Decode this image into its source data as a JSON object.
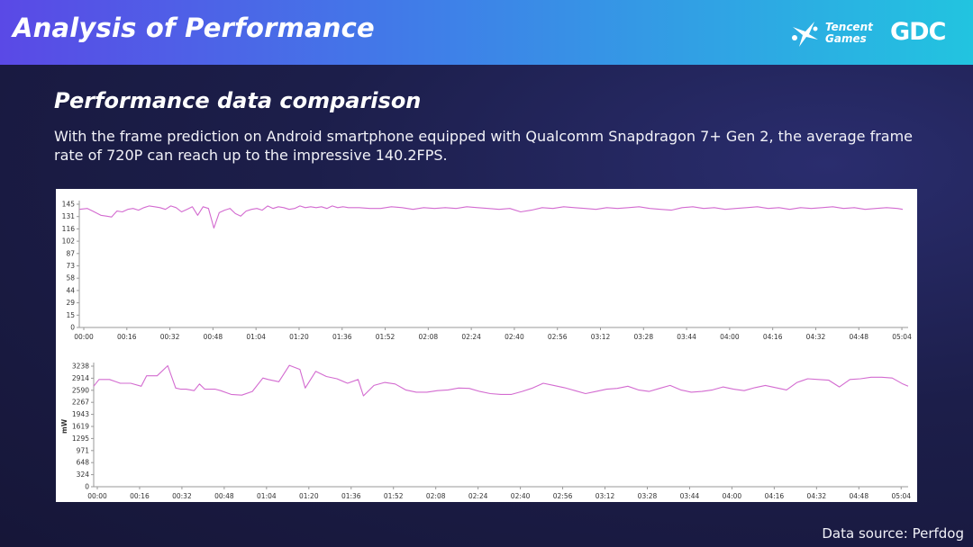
{
  "header": {
    "title": "Analysis of Performance",
    "logo_tencent_line1": "Tencent",
    "logo_tencent_line2": "Games",
    "logo_gdc": "GDC"
  },
  "slide": {
    "subtitle": "Performance data comparison",
    "description": "With the frame prediction on Android smartphone equipped with Qualcomm Snapdragon 7+ Gen 2, the average frame rate of 720P can reach up to the impressive 140.2FPS.",
    "source": "Data source: Perfdog"
  },
  "colors": {
    "header_start": "#5a49e6",
    "header_end": "#22c4e0",
    "background": "#1c1e4a",
    "series_line": "#d36bd0"
  },
  "chart_data": [
    {
      "type": "line",
      "ylabel": "",
      "yticks": [
        "0",
        "15",
        "29",
        "44",
        "58",
        "73",
        "87",
        "102",
        "116",
        "131",
        "145"
      ],
      "xticks": [
        "00:00",
        "00:16",
        "00:32",
        "00:48",
        "01:04",
        "01:20",
        "01:36",
        "01:52",
        "02:08",
        "02:24",
        "02:40",
        "02:56",
        "03:12",
        "03:28",
        "03:44",
        "04:00",
        "04:16",
        "04:32",
        "04:48",
        "05:04"
      ],
      "ylim": [
        0,
        145
      ],
      "xlim": [
        0,
        308
      ],
      "grid": false,
      "series": [
        {
          "x": [
            0,
            3,
            5,
            8,
            10,
            12,
            14,
            16,
            18,
            20,
            22,
            24,
            26,
            28,
            30,
            32,
            34,
            36,
            38,
            40,
            42,
            44,
            46,
            48,
            50,
            52,
            54,
            56,
            58,
            60,
            62,
            64,
            66,
            68,
            70,
            72,
            74,
            76,
            78,
            80,
            82,
            84,
            86,
            88,
            90,
            92,
            94,
            96,
            98,
            100,
            104,
            108,
            112,
            116,
            120,
            124,
            128,
            132,
            136,
            140,
            144,
            148,
            152,
            156,
            160,
            164,
            168,
            172,
            176,
            180,
            184,
            188,
            192,
            196,
            200,
            204,
            208,
            212,
            216,
            220,
            224,
            228,
            232,
            236,
            240,
            244,
            248,
            252,
            256,
            260,
            264,
            268,
            272,
            276,
            280,
            284,
            288,
            292,
            296,
            300,
            304,
            306
          ],
          "y": [
            139,
            140,
            137,
            132,
            131,
            130,
            137,
            136,
            139,
            140,
            138,
            141,
            143,
            142,
            141,
            139,
            143,
            141,
            136,
            139,
            142,
            132,
            142,
            140,
            117,
            135,
            138,
            140,
            134,
            131,
            137,
            139,
            140,
            138,
            143,
            140,
            142,
            141,
            139,
            140,
            143,
            141,
            142,
            141,
            142,
            140,
            143,
            141,
            142,
            141,
            141,
            140,
            140,
            142,
            141,
            139,
            141,
            140,
            141,
            140,
            142,
            141,
            140,
            139,
            140,
            136,
            138,
            141,
            140,
            142,
            141,
            140,
            139,
            141,
            140,
            141,
            142,
            140,
            139,
            138,
            141,
            142,
            140,
            141,
            139,
            140,
            141,
            142,
            140,
            141,
            139,
            141,
            140,
            141,
            142,
            140,
            141,
            139,
            140,
            141,
            140,
            139
          ]
        }
      ]
    },
    {
      "type": "line",
      "ylabel": "mW",
      "yticks": [
        "0",
        "324",
        "648",
        "971",
        "1295",
        "1619",
        "1943",
        "2267",
        "2590",
        "2914",
        "3238"
      ],
      "xticks": [
        "00:00",
        "00:16",
        "00:32",
        "00:48",
        "01:04",
        "01:20",
        "01:36",
        "01:52",
        "02:08",
        "02:24",
        "02:40",
        "02:56",
        "03:12",
        "03:28",
        "03:44",
        "04:00",
        "04:16",
        "04:32",
        "04:48",
        "05:04"
      ],
      "ylim": [
        0,
        3238
      ],
      "xlim": [
        0,
        308
      ],
      "grid": false,
      "series": [
        {
          "x": [
            0,
            2,
            6,
            10,
            14,
            18,
            20,
            24,
            28,
            31,
            33,
            35,
            38,
            40,
            42,
            46,
            48,
            52,
            56,
            60,
            64,
            66,
            70,
            74,
            78,
            80,
            84,
            88,
            92,
            96,
            100,
            102,
            106,
            110,
            114,
            118,
            122,
            126,
            130,
            134,
            138,
            142,
            146,
            150,
            154,
            158,
            162,
            166,
            170,
            174,
            178,
            182,
            186,
            190,
            194,
            198,
            202,
            206,
            210,
            214,
            218,
            222,
            226,
            230,
            234,
            238,
            242,
            246,
            250,
            254,
            258,
            262,
            266,
            270,
            274,
            278,
            282,
            286,
            290,
            294,
            298,
            302,
            306,
            308
          ],
          "y": [
            2700,
            2880,
            2880,
            2780,
            2780,
            2700,
            2980,
            2980,
            3250,
            2650,
            2620,
            2620,
            2580,
            2760,
            2620,
            2620,
            2580,
            2480,
            2460,
            2560,
            2920,
            2880,
            2820,
            3260,
            3150,
            2650,
            3100,
            2960,
            2900,
            2780,
            2880,
            2440,
            2720,
            2800,
            2760,
            2600,
            2540,
            2540,
            2580,
            2600,
            2650,
            2640,
            2560,
            2500,
            2480,
            2480,
            2560,
            2650,
            2780,
            2720,
            2660,
            2580,
            2500,
            2560,
            2620,
            2640,
            2700,
            2600,
            2560,
            2640,
            2720,
            2600,
            2540,
            2560,
            2600,
            2680,
            2620,
            2580,
            2660,
            2720,
            2660,
            2600,
            2800,
            2900,
            2880,
            2860,
            2680,
            2880,
            2900,
            2940,
            2940,
            2920,
            2760,
            2700
          ]
        }
      ]
    }
  ]
}
